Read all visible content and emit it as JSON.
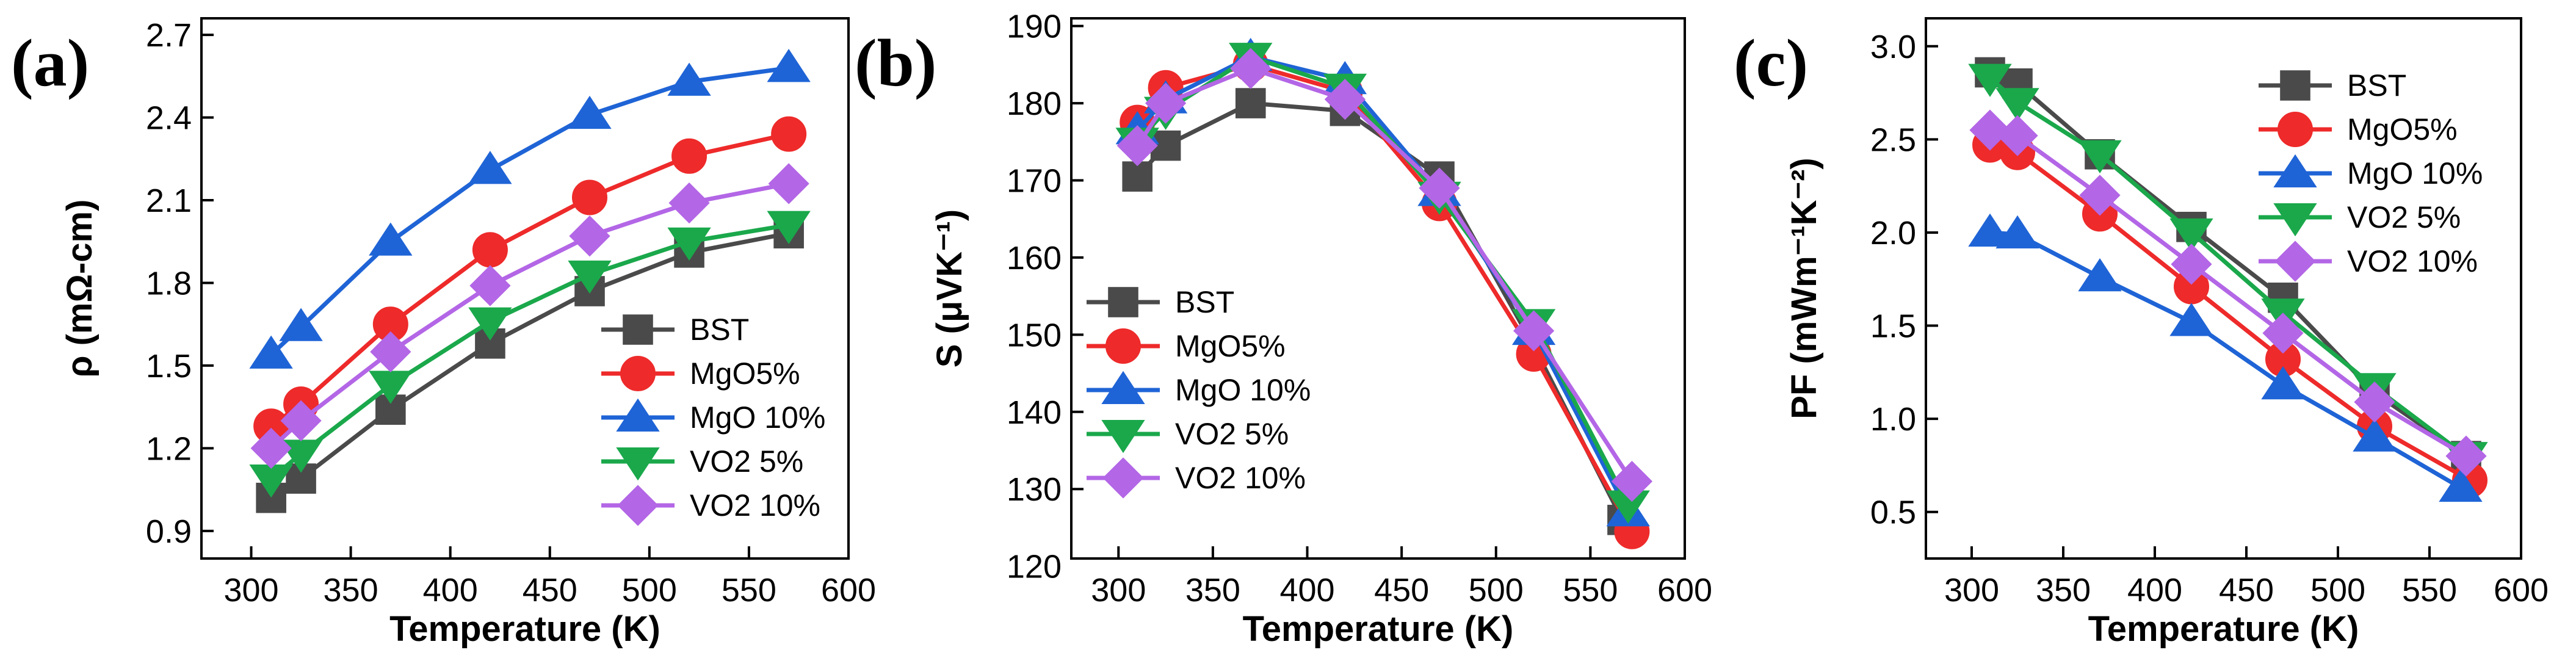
{
  "colors": {
    "BST": "#4a4a4a",
    "MgO5%": "#ee2a2a",
    "MgO 10%": "#1f64d6",
    "VO2 5%": "#1aa84b",
    "VO2 10%": "#b366e6"
  },
  "chart_data": [
    {
      "type": "line",
      "panel_label": "(a)",
      "xlabel": "Temperature (K)",
      "ylabel": "ρ (mΩ-cm)",
      "xlim": [
        275,
        600
      ],
      "ylim": [
        0.8,
        2.76
      ],
      "xticks": [
        300,
        350,
        400,
        450,
        500,
        550,
        600
      ],
      "yticks": [
        0.9,
        1.2,
        1.5,
        1.8,
        2.1,
        2.4,
        2.7
      ],
      "ytick_labels": [
        "0.9",
        "1.2",
        "1.5",
        "1.8",
        "2.1",
        "2.4",
        "2.7"
      ],
      "legend_position": "lower-right",
      "series": [
        {
          "name": "BST",
          "marker": "square",
          "x": [
            310,
            325,
            370,
            420,
            470,
            520,
            570
          ],
          "y": [
            1.02,
            1.09,
            1.34,
            1.58,
            1.77,
            1.91,
            1.98
          ]
        },
        {
          "name": "MgO5%",
          "marker": "circle",
          "x": [
            310,
            325,
            370,
            420,
            470,
            520,
            570
          ],
          "y": [
            1.28,
            1.36,
            1.65,
            1.92,
            2.11,
            2.26,
            2.34
          ]
        },
        {
          "name": "MgO 10%",
          "marker": "triangle-up",
          "x": [
            310,
            325,
            370,
            420,
            470,
            520,
            570
          ],
          "y": [
            1.54,
            1.64,
            1.95,
            2.21,
            2.41,
            2.53,
            2.58
          ]
        },
        {
          "name": "VO2 5%",
          "marker": "triangle-down",
          "x": [
            310,
            325,
            370,
            420,
            470,
            520,
            570
          ],
          "y": [
            1.09,
            1.18,
            1.43,
            1.66,
            1.83,
            1.95,
            2.01
          ]
        },
        {
          "name": "VO2 10%",
          "marker": "diamond",
          "x": [
            310,
            325,
            370,
            420,
            470,
            520,
            570
          ],
          "y": [
            1.2,
            1.3,
            1.55,
            1.79,
            1.97,
            2.09,
            2.16
          ]
        }
      ]
    },
    {
      "type": "line",
      "panel_label": "(b)",
      "xlabel": "Temperature (K)",
      "ylabel": "S (μVK⁻¹)",
      "xlim": [
        275,
        600
      ],
      "ylim": [
        121,
        191
      ],
      "xticks": [
        300,
        350,
        400,
        450,
        500,
        550,
        600
      ],
      "yticks": [
        120,
        130,
        140,
        150,
        160,
        170,
        180,
        190
      ],
      "ytick_labels": [
        "120",
        "130",
        "140",
        "150",
        "160",
        "170",
        "180",
        "190"
      ],
      "legend_position": "lower-left",
      "series": [
        {
          "name": "BST",
          "marker": "square",
          "x": [
            310,
            325,
            370,
            420,
            470,
            520,
            567
          ],
          "y": [
            170.5,
            174.5,
            180,
            179,
            170.5,
            148.5,
            126
          ]
        },
        {
          "name": "MgO5%",
          "marker": "circle",
          "x": [
            310,
            325,
            370,
            420,
            470,
            520,
            572
          ],
          "y": [
            177.5,
            182,
            185,
            181.5,
            167,
            147.5,
            124.5
          ]
        },
        {
          "name": "MgO 10%",
          "marker": "triangle-up",
          "x": [
            310,
            325,
            370,
            420,
            470,
            520,
            570
          ],
          "y": [
            176.5,
            180.5,
            186,
            183,
            168.5,
            150.5,
            127
          ]
        },
        {
          "name": "VO2 5%",
          "marker": "triangle-down",
          "x": [
            310,
            325,
            370,
            420,
            470,
            520,
            570
          ],
          "y": [
            175,
            179,
            186,
            182,
            168,
            151.5,
            128
          ]
        },
        {
          "name": "VO2 10%",
          "marker": "diamond",
          "x": [
            310,
            325,
            370,
            420,
            470,
            520,
            572
          ],
          "y": [
            174.5,
            180,
            184.5,
            180.5,
            169,
            150.5,
            131
          ]
        }
      ]
    },
    {
      "type": "line",
      "panel_label": "(c)",
      "xlabel": "Temperature (K)",
      "ylabel": "PF (mWm⁻¹K⁻²)",
      "xlim": [
        275,
        600
      ],
      "ylim": [
        0.25,
        3.15
      ],
      "xticks": [
        300,
        350,
        400,
        450,
        500,
        550,
        600
      ],
      "yticks": [
        0.5,
        1.0,
        1.5,
        2.0,
        2.5,
        3.0
      ],
      "ytick_labels": [
        "0.5",
        "1.0",
        "1.5",
        "2.0",
        "2.5",
        "3.0"
      ],
      "legend_position": "top-right",
      "series": [
        {
          "name": "BST",
          "marker": "square",
          "x": [
            310,
            325,
            370,
            420,
            470,
            520,
            570
          ],
          "y": [
            2.86,
            2.8,
            2.42,
            2.03,
            1.65,
            1.14,
            0.8
          ]
        },
        {
          "name": "MgO5%",
          "marker": "circle",
          "x": [
            310,
            325,
            370,
            420,
            470,
            520,
            572
          ],
          "y": [
            2.47,
            2.43,
            2.1,
            1.71,
            1.32,
            0.96,
            0.67
          ]
        },
        {
          "name": "MgO 10%",
          "marker": "triangle-up",
          "x": [
            310,
            325,
            370,
            420,
            470,
            520,
            567
          ],
          "y": [
            2.0,
            1.99,
            1.76,
            1.52,
            1.18,
            0.9,
            0.63
          ]
        },
        {
          "name": "VO2 5%",
          "marker": "triangle-down",
          "x": [
            310,
            325,
            370,
            420,
            470,
            520,
            570
          ],
          "y": [
            2.83,
            2.7,
            2.42,
            2.0,
            1.57,
            1.17,
            0.8
          ]
        },
        {
          "name": "VO2 10%",
          "marker": "diamond",
          "x": [
            310,
            325,
            370,
            420,
            470,
            520,
            570
          ],
          "y": [
            2.55,
            2.52,
            2.2,
            1.83,
            1.46,
            1.09,
            0.8
          ]
        }
      ]
    }
  ]
}
